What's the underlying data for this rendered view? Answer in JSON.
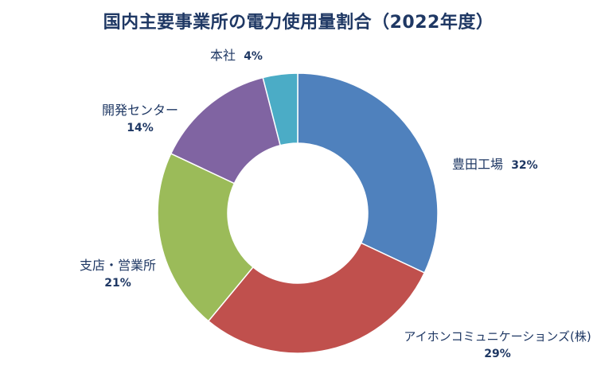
{
  "chart_data": {
    "type": "pie",
    "variant": "donut",
    "title": "国内主要事業所の電力使用量割合（2022年度）",
    "categories": [
      "豊田工場",
      "アイホンコミュニケーションズ(株)",
      "支店・営業所",
      "開発センター",
      "本社"
    ],
    "values": [
      32,
      29,
      21,
      14,
      4
    ],
    "value_labels": [
      "32%",
      "29%",
      "21%",
      "14%",
      "4%"
    ],
    "unit": "%",
    "colors": [
      "#4f81bd",
      "#c0504d",
      "#9bbb59",
      "#8064a2",
      "#4bacc6"
    ],
    "legend": "none"
  }
}
